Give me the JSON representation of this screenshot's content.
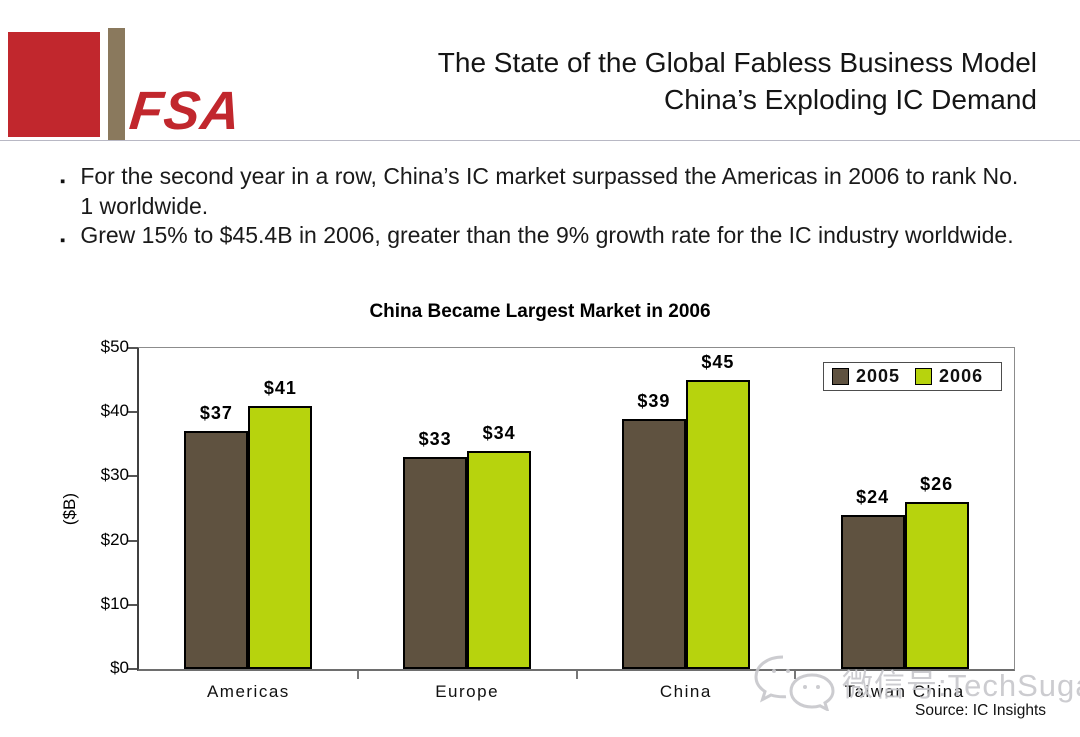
{
  "slide": {
    "logo_text": "FSA",
    "title_line1": "The State of the Global Fabless Business Model",
    "title_line2": "China’s Exploding IC Demand",
    "bullet_marker": "▪",
    "bullets": [
      {
        "text": "For the second year in a row, China’s IC market surpassed the Americas in 2006 to rank No. 1 worldwide."
      },
      {
        "text": "Grew 15% to $45.4B in 2006, greater than the 9% growth rate for the IC industry worldwide."
      }
    ],
    "watermark_text": "微信号:TechSugar",
    "source": "Source: IC Insights"
  },
  "colors": {
    "logo_red": "#C1272D",
    "logo_tan": "#8A795D",
    "bar_2005": "#5F5240",
    "bar_2006": "#B7D30D",
    "watermark_gray": "#C7C7CB"
  },
  "chart_data": {
    "type": "bar",
    "title": "China Became Largest Market in 2006",
    "categories": [
      "Americas",
      "Europe",
      "China",
      "Taiwan China"
    ],
    "series": [
      {
        "name": "2005",
        "color": "#5F5240",
        "values": [
          37,
          33,
          39,
          24
        ],
        "labels": [
          "$37",
          "$33",
          "$39",
          "$24"
        ]
      },
      {
        "name": "2006",
        "color": "#B7D30D",
        "values": [
          41,
          34,
          45,
          26
        ],
        "labels": [
          "$41",
          "$34",
          "$45",
          "$26"
        ]
      }
    ],
    "xlabel": "",
    "ylabel": "($B)",
    "ylim": [
      0,
      50
    ],
    "yticks": [
      0,
      10,
      20,
      30,
      40,
      50
    ],
    "ytick_labels": [
      "$0",
      "$10",
      "$20",
      "$30",
      "$40",
      "$50"
    ],
    "legend_position": "top-right",
    "grid": false
  }
}
